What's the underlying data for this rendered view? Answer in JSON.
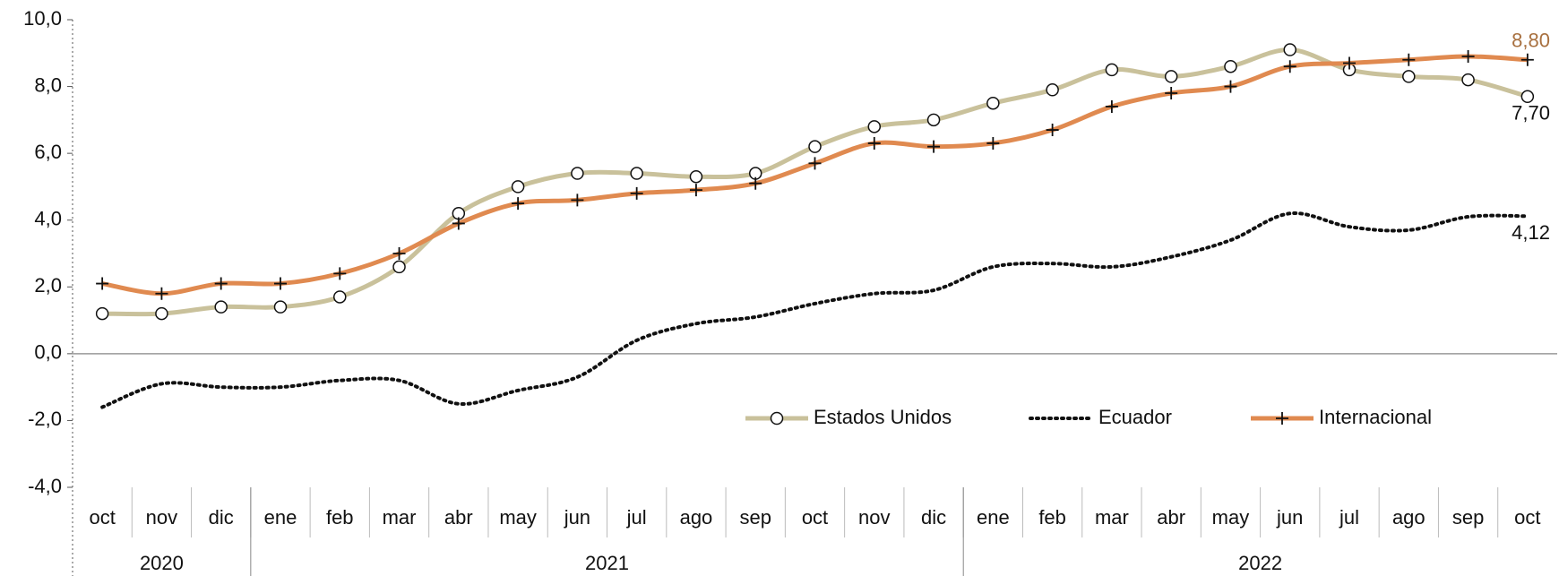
{
  "chart_data": {
    "type": "line",
    "categories": [
      "oct",
      "nov",
      "dic",
      "ene",
      "feb",
      "mar",
      "abr",
      "may",
      "jun",
      "jul",
      "ago",
      "sep",
      "oct",
      "nov",
      "dic",
      "ene",
      "feb",
      "mar",
      "abr",
      "may",
      "jun",
      "jul",
      "ago",
      "sep",
      "oct"
    ],
    "years": [
      {
        "label": "2020",
        "months": 3
      },
      {
        "label": "2021",
        "months": 12
      },
      {
        "label": "2022",
        "months": 10
      }
    ],
    "ylim": [
      -4,
      10
    ],
    "yticks": [
      {
        "value": -4,
        "label": "-4,0"
      },
      {
        "value": -2,
        "label": "-2,0"
      },
      {
        "value": 0,
        "label": "0,0"
      },
      {
        "value": 2,
        "label": "2,0"
      },
      {
        "value": 4,
        "label": "4,0"
      },
      {
        "value": 6,
        "label": "6,0"
      },
      {
        "value": 8,
        "label": "8,0"
      },
      {
        "value": 10,
        "label": "10,0"
      }
    ],
    "series": [
      {
        "name": "Estados Unidos",
        "color": "#c9c19b",
        "marker": "circle",
        "dash": "solid",
        "values": [
          1.2,
          1.2,
          1.4,
          1.4,
          1.7,
          2.6,
          4.2,
          5.0,
          5.4,
          5.4,
          5.3,
          5.4,
          6.2,
          6.8,
          7.0,
          7.5,
          7.9,
          8.5,
          8.3,
          8.6,
          9.1,
          8.5,
          8.3,
          8.2,
          7.7
        ],
        "end_label": "7,70",
        "label_color": "#111111"
      },
      {
        "name": "Ecuador",
        "color": "#111111",
        "marker": "none",
        "dash": "dotted",
        "values": [
          -1.6,
          -0.9,
          -1.0,
          -1.0,
          -0.8,
          -0.8,
          -1.5,
          -1.1,
          -0.7,
          0.4,
          0.9,
          1.1,
          1.5,
          1.8,
          1.9,
          2.6,
          2.7,
          2.6,
          2.9,
          3.4,
          4.2,
          3.8,
          3.7,
          4.1,
          4.12
        ],
        "end_label": "4,12",
        "label_color": "#111111"
      },
      {
        "name": "Internacional",
        "color": "#e08a50",
        "marker": "plus",
        "dash": "solid",
        "values": [
          2.1,
          1.8,
          2.1,
          2.1,
          2.4,
          3.0,
          3.9,
          4.5,
          4.6,
          4.8,
          4.9,
          5.1,
          5.7,
          6.3,
          6.2,
          6.3,
          6.7,
          7.4,
          7.8,
          8.0,
          8.6,
          8.7,
          8.8,
          8.9,
          8.8
        ],
        "end_label": "8,80",
        "label_color": "#a8703f"
      }
    ]
  }
}
